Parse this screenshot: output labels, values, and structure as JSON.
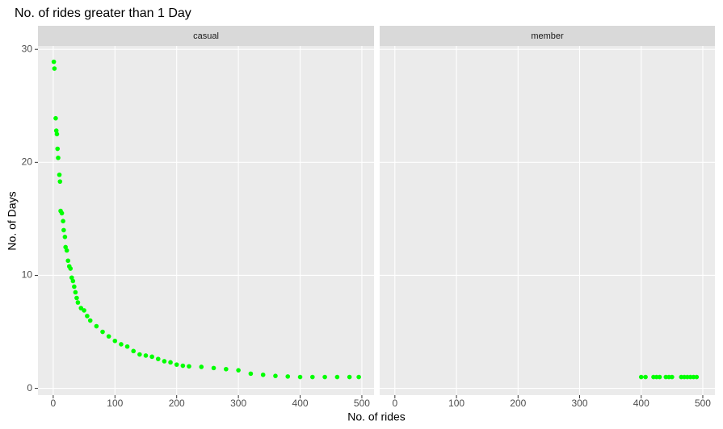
{
  "chart_data": {
    "type": "scatter",
    "title": "No. of rides greater than 1 Day",
    "x_label": "No. of rides",
    "y_label": "No. of Days",
    "color": "#00ff00",
    "xlim": [
      -24.7,
      519.7
    ],
    "ylim": [
      -0.6,
      30.3
    ],
    "xticks": [
      0,
      100,
      200,
      300,
      400,
      500
    ],
    "yticks": [
      0,
      10,
      20,
      30
    ],
    "grid": true,
    "facets": [
      {
        "name": "casual",
        "x": [
          1,
          2,
          4,
          5,
          6,
          7,
          8,
          10,
          11,
          12,
          14,
          16,
          17,
          19,
          20,
          22,
          24,
          26,
          28,
          30,
          32,
          34,
          36,
          38,
          40,
          45,
          50,
          55,
          60,
          70,
          80,
          90,
          100,
          110,
          120,
          130,
          140,
          150,
          160,
          170,
          180,
          190,
          200,
          210,
          220,
          240,
          260,
          280,
          300,
          320,
          340,
          360,
          380,
          400,
          420,
          440,
          460,
          480,
          495
        ],
        "values": [
          28.9,
          28.3,
          23.9,
          22.8,
          22.5,
          21.2,
          20.4,
          18.9,
          18.3,
          15.7,
          15.5,
          14.8,
          14,
          13.4,
          12.5,
          12.2,
          11.3,
          10.8,
          10.6,
          9.8,
          9.5,
          9,
          8.5,
          8,
          7.6,
          7.1,
          6.9,
          6.4,
          6,
          5.5,
          5,
          4.6,
          4.2,
          3.9,
          3.7,
          3.3,
          3,
          2.9,
          2.8,
          2.6,
          2.4,
          2.3,
          2.1,
          2,
          1.95,
          1.9,
          1.8,
          1.7,
          1.6,
          1.3,
          1.2,
          1.1,
          1.05,
          1,
          1,
          1,
          1,
          1,
          1
        ]
      },
      {
        "name": "member",
        "x": [
          400,
          407,
          420,
          425,
          430,
          440,
          445,
          450,
          465,
          470,
          475,
          480,
          485,
          490
        ],
        "values": [
          1,
          1,
          1,
          1,
          1,
          1,
          1,
          1,
          1,
          1,
          1,
          1,
          1,
          1
        ]
      }
    ]
  }
}
